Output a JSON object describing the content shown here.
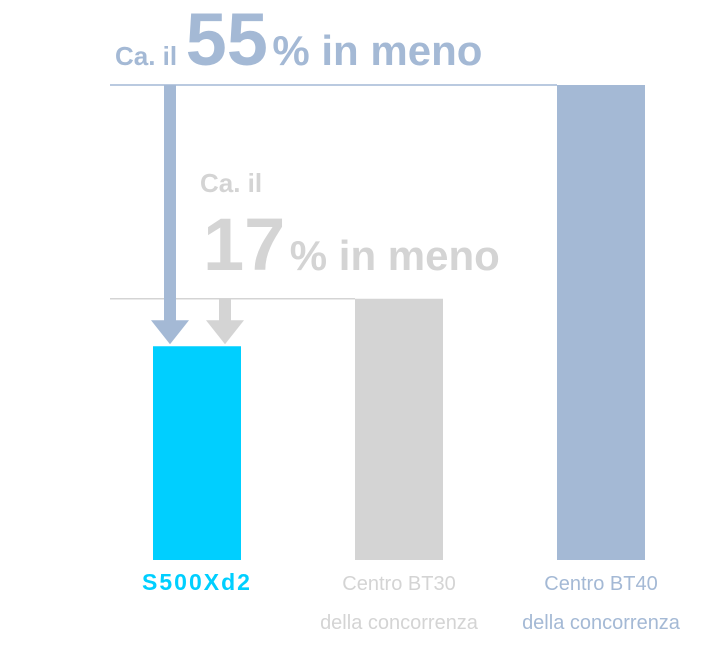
{
  "chart_data": {
    "type": "bar",
    "categories": [
      [
        "S500Xd2"
      ],
      [
        "Centro BT30",
        "della concorrenza"
      ],
      [
        "Centro BT40",
        "della concorrenza"
      ]
    ],
    "values": [
      45,
      55,
      100
    ],
    "colors": [
      "#00cfff",
      "#d4d4d4",
      "#a4b9d5"
    ],
    "label_colors": [
      "#00cfff",
      "#d4d4d4",
      "#a4b9d5"
    ],
    "annotations": [
      {
        "prefix": "Ca. il",
        "number": "55",
        "suffix": "% in meno",
        "color": "#a4b9d5"
      },
      {
        "prefix": "Ca. il",
        "number": "17",
        "suffix": "% in meno",
        "color": "#d4d4d4"
      }
    ]
  }
}
